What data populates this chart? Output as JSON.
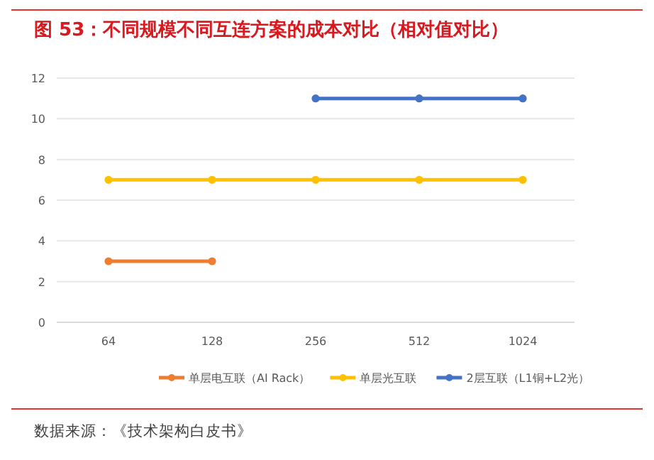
{
  "chart_data": {
    "type": "line",
    "title": "图 53：不同规模不同互连方案的成本对比（相对值对比）",
    "categories": [
      "64",
      "128",
      "256",
      "512",
      "1024"
    ],
    "series": [
      {
        "name": "单层电互联（AI Rack）",
        "color": "#ed7d31",
        "values": [
          3,
          3,
          null,
          null,
          null
        ]
      },
      {
        "name": "单层光互联",
        "color": "#ffc000",
        "values": [
          7,
          7,
          7,
          7,
          7
        ]
      },
      {
        "name": "2层互联（L1铜+L2光）",
        "color": "#4472c4",
        "values": [
          null,
          null,
          11,
          11,
          11
        ]
      }
    ],
    "ylim": [
      0,
      12
    ],
    "yticks": [
      0,
      2,
      4,
      6,
      8,
      10,
      12
    ],
    "grid": "y",
    "legend": "bottom",
    "marker": "circle",
    "annotations": [
      "数据来源：《技术架构白皮书》"
    ]
  }
}
